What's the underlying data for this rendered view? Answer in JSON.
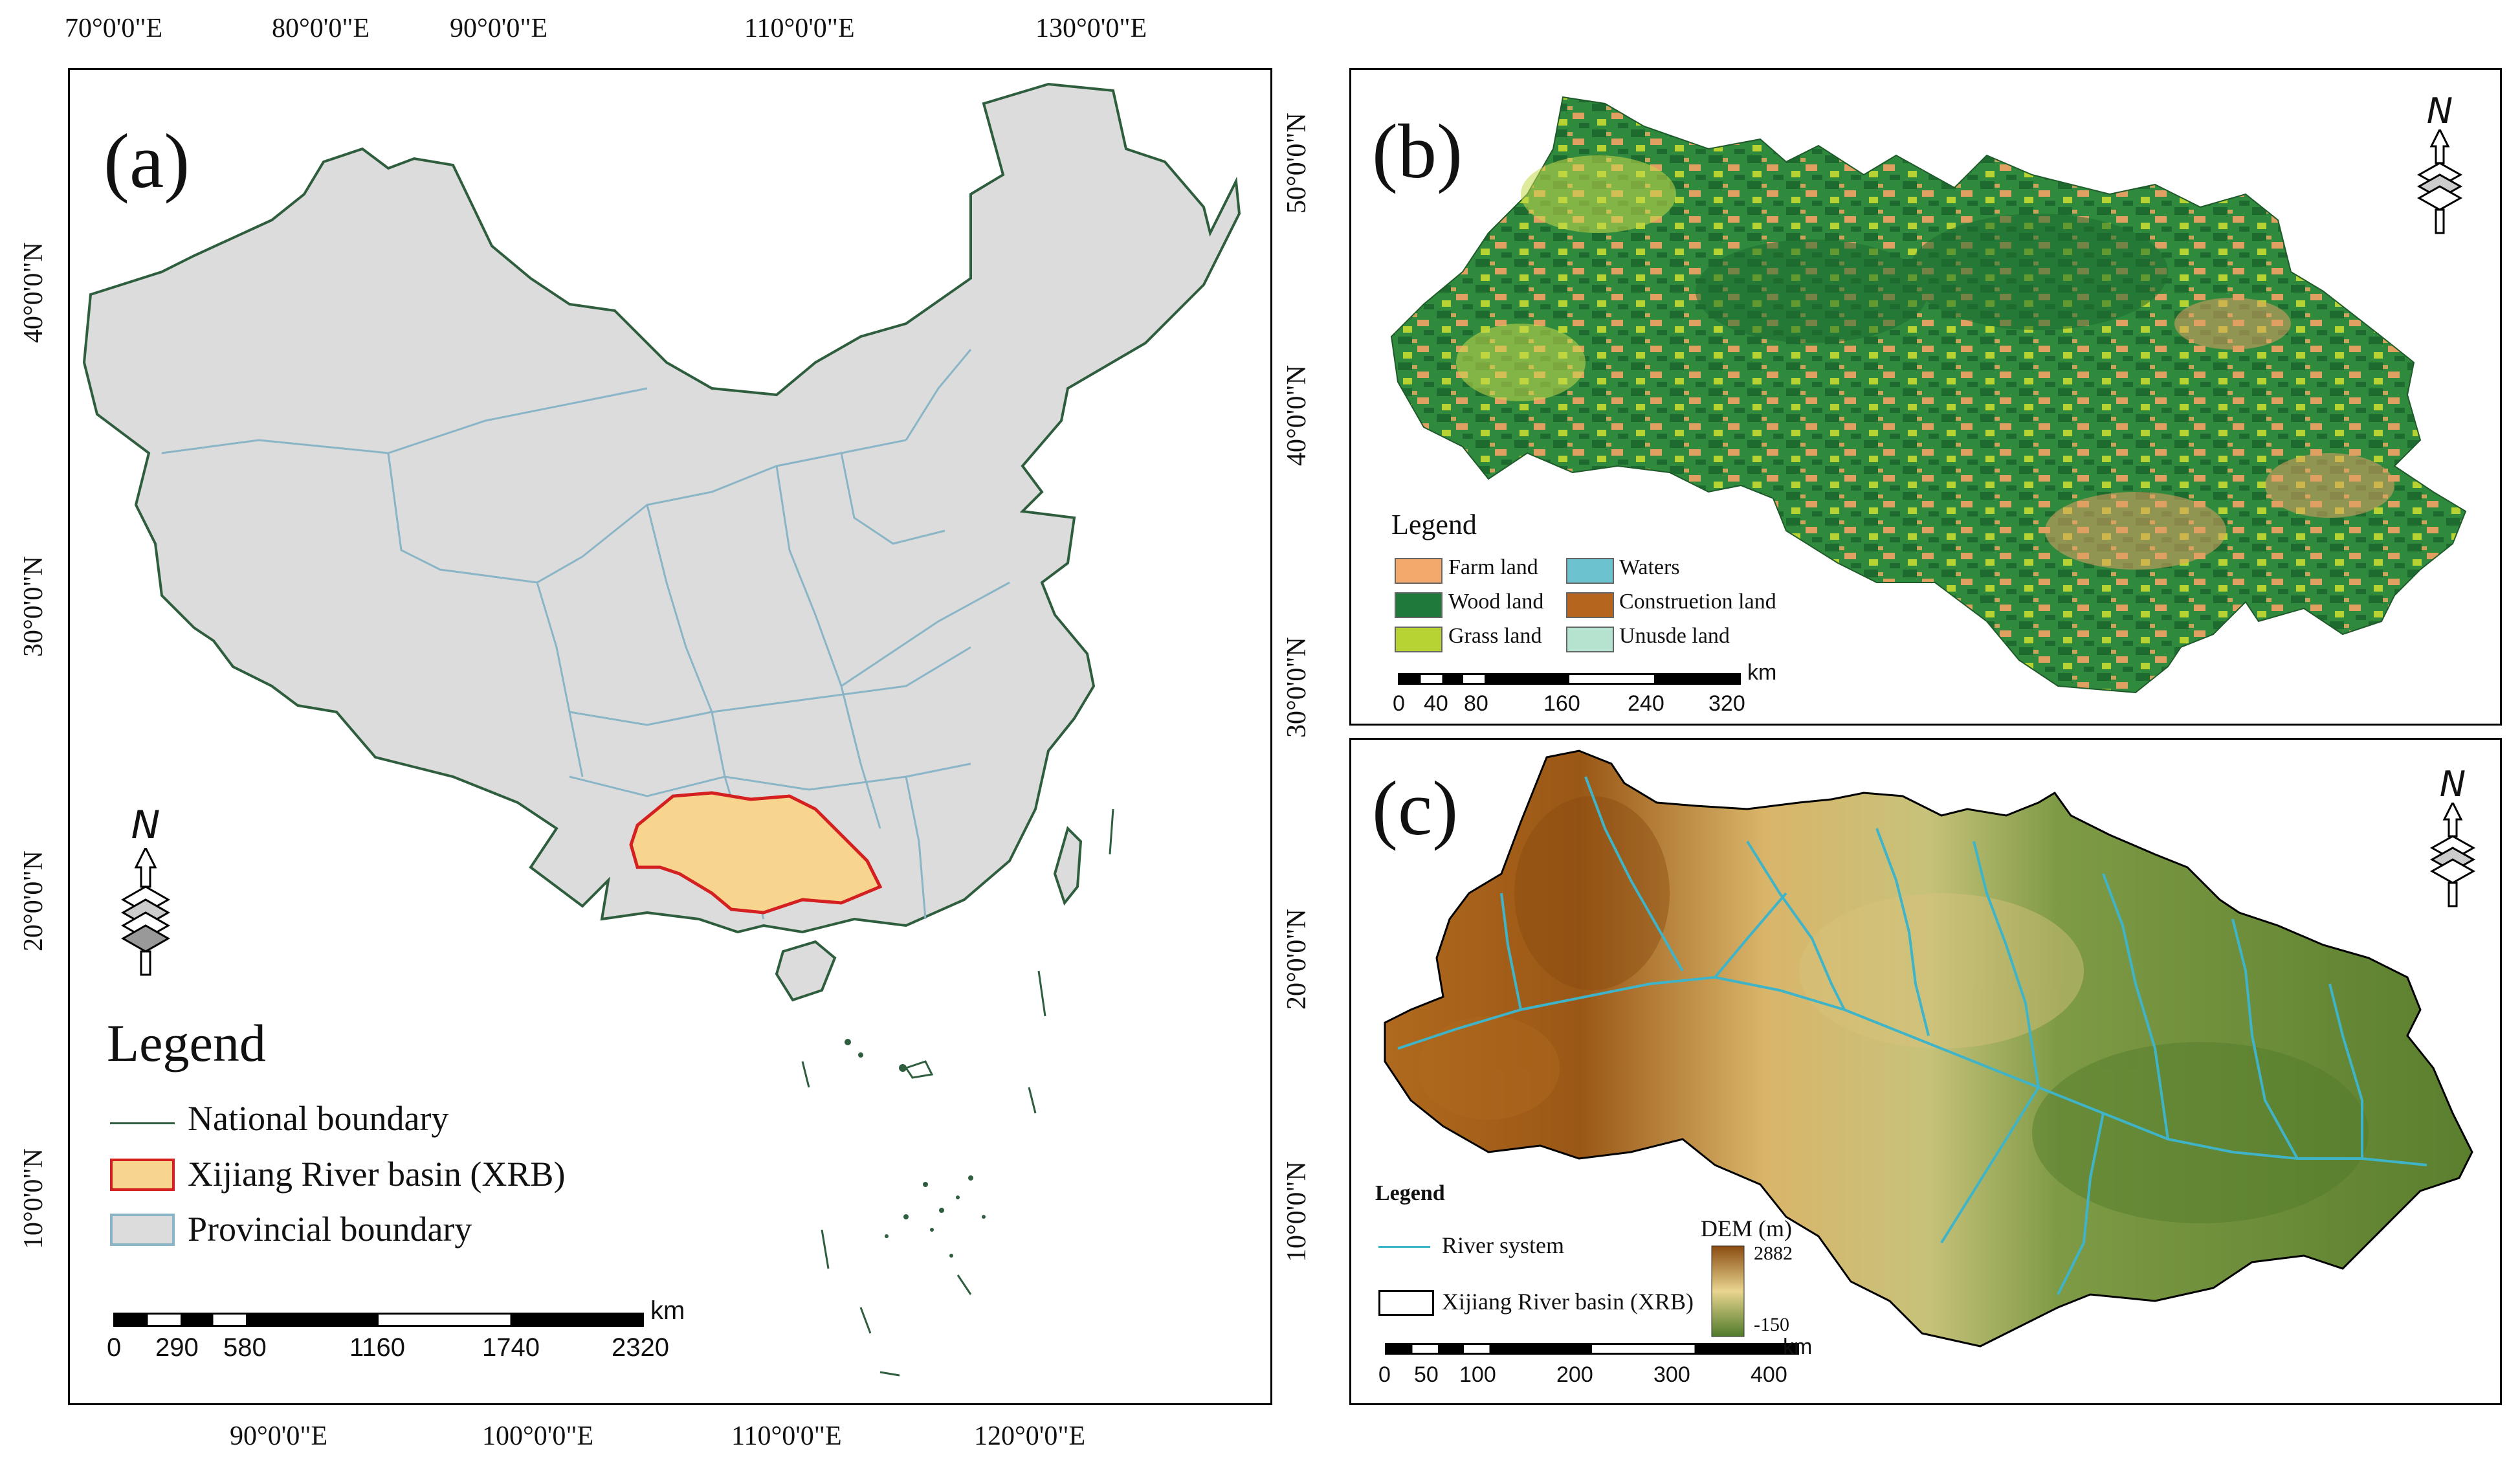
{
  "panel_a": {
    "letter": "(a)",
    "top_lon": [
      "70°0'0\"E",
      "80°0'0\"E",
      "90°0'0\"E",
      "110°0'0\"E",
      "130°0'0\"E"
    ],
    "bottom_lon": [
      "90°0'0\"E",
      "100°0'0\"E",
      "110°0'0\"E",
      "120°0'0\"E"
    ],
    "left_lat": [
      "40°0'0\"N",
      "30°0'0\"N",
      "20°0'0\"N",
      "10°0'0\"N"
    ],
    "right_lat": [
      "50°0'0\"N",
      "40°0'0\"N",
      "30°0'0\"N",
      "20°0'0\"N",
      "10°0'0\"N"
    ],
    "north": "N",
    "legend": {
      "title": "Legend",
      "items": [
        {
          "label": "National boundary"
        },
        {
          "label": "Xijiang River basin (XRB)"
        },
        {
          "label": "Provincial boundary"
        }
      ]
    },
    "scale": {
      "unit": "km",
      "ticks": [
        "0",
        "290",
        "580",
        "1160",
        "1740",
        "2320"
      ]
    }
  },
  "panel_b": {
    "letter": "(b)",
    "north": "N",
    "legend": {
      "title": "Legend",
      "items": [
        {
          "label": "Farm land",
          "color": "#f2a96b"
        },
        {
          "label": "Waters",
          "color": "#6cc3cf"
        },
        {
          "label": "Wood land",
          "color": "#1e7a3a"
        },
        {
          "label": "Construetion land",
          "color": "#b5651d"
        },
        {
          "label": "Grass land",
          "color": "#b7d233"
        },
        {
          "label": "Unusde land",
          "color": "#b6e3d0"
        }
      ]
    },
    "scale": {
      "unit": "km",
      "ticks": [
        "0",
        "40",
        "80",
        "160",
        "240",
        "320"
      ]
    }
  },
  "panel_c": {
    "letter": "(c)",
    "north": "N",
    "legend": {
      "title": "Legend",
      "river": "River system",
      "basin": "Xijiang River basin (XRB)",
      "dem_title": "DEM (m)",
      "dem_max": "2882",
      "dem_min": "-150"
    },
    "scale": {
      "unit": "km",
      "ticks": [
        "0",
        "50",
        "100",
        "200",
        "300",
        "400"
      ]
    }
  },
  "colors": {
    "province_fill": "#dcdcdc",
    "national_line": "#2f5e3e",
    "provincial_line": "#8ab5c6",
    "xrb_fill": "#f7d58e",
    "xrb_line": "#d42020",
    "river": "#3fb4c8",
    "dem_high": "#8a4b10",
    "dem_mid": "#e9d58f",
    "dem_low": "#4f7a2a"
  }
}
